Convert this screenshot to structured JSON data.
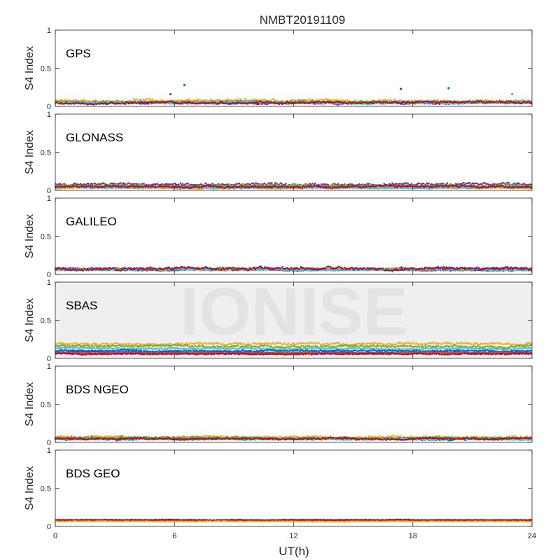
{
  "figure": {
    "title": "NMBT20191109",
    "xlabel": "UT(h)",
    "watermark": "IONISE",
    "background": "#ffffff",
    "watermark_panel_bg": "#efefef"
  },
  "chart_data": {
    "type": "scatter",
    "title": "NMBT20191109",
    "xlabel": "UT(h)",
    "ylabel": "S4 Index",
    "xlim": [
      0,
      24
    ],
    "ylim": [
      0,
      1
    ],
    "xticks": [
      0,
      6,
      12,
      18,
      24
    ],
    "yticks": [
      0,
      0.5,
      1
    ],
    "xtick_labels": [
      "0",
      "6",
      "12",
      "18",
      "24"
    ],
    "ytick_labels": [
      "0",
      "0.5",
      "1"
    ],
    "grid": false,
    "legend": "none",
    "colors": [
      "#0072bd",
      "#d95319",
      "#edb120",
      "#7e2f8e",
      "#77ac30",
      "#4dbeee",
      "#a2142f"
    ],
    "panels": [
      {
        "label": "GPS",
        "ylabel": "S4 Index",
        "series": [
          {
            "color": "#0072bd",
            "baseline": 0.05,
            "noise": 0.02
          },
          {
            "color": "#d95319",
            "baseline": 0.06,
            "noise": 0.02
          },
          {
            "color": "#edb120",
            "baseline": 0.07,
            "noise": 0.025
          },
          {
            "color": "#7e2f8e",
            "baseline": 0.05,
            "noise": 0.02
          },
          {
            "color": "#77ac30",
            "baseline": 0.06,
            "noise": 0.02
          },
          {
            "color": "#4dbeee",
            "baseline": 0.05,
            "noise": 0.02
          },
          {
            "color": "#a2142f",
            "baseline": 0.05,
            "noise": 0.02
          }
        ],
        "outliers": [
          {
            "x": 6.5,
            "y": 0.28,
            "color": "#0072bd"
          },
          {
            "x": 17.4,
            "y": 0.23,
            "color": "#a2142f"
          },
          {
            "x": 19.8,
            "y": 0.24,
            "color": "#0072bd"
          },
          {
            "x": 5.8,
            "y": 0.16,
            "color": "#0072bd"
          },
          {
            "x": 23.0,
            "y": 0.16,
            "color": "#77ac30"
          }
        ]
      },
      {
        "label": "GLONASS",
        "ylabel": "S4 Index",
        "series": [
          {
            "color": "#0072bd",
            "baseline": 0.04,
            "noise": 0.015
          },
          {
            "color": "#d95319",
            "baseline": 0.05,
            "noise": 0.015
          },
          {
            "color": "#edb120",
            "baseline": 0.03,
            "noise": 0.01
          },
          {
            "color": "#7e2f8e",
            "baseline": 0.08,
            "noise": 0.025
          },
          {
            "color": "#77ac30",
            "baseline": 0.06,
            "noise": 0.02
          },
          {
            "color": "#4dbeee",
            "baseline": 0.04,
            "noise": 0.015
          },
          {
            "color": "#a2142f",
            "baseline": 0.05,
            "noise": 0.02
          }
        ],
        "outliers": []
      },
      {
        "label": "GALILEO",
        "ylabel": "S4 Index",
        "series": [
          {
            "color": "#0072bd",
            "baseline": 0.06,
            "noise": 0.012
          },
          {
            "color": "#d95319",
            "baseline": 0.065,
            "noise": 0.015
          },
          {
            "color": "#edb120",
            "baseline": 0.07,
            "noise": 0.015
          },
          {
            "color": "#7e2f8e",
            "baseline": 0.075,
            "noise": 0.02
          },
          {
            "color": "#77ac30",
            "baseline": 0.07,
            "noise": 0.015
          },
          {
            "color": "#4dbeee",
            "baseline": 0.06,
            "noise": 0.012
          },
          {
            "color": "#a2142f",
            "baseline": 0.08,
            "noise": 0.025
          }
        ],
        "outliers": []
      },
      {
        "label": "SBAS",
        "ylabel": "S4 Index",
        "series": [
          {
            "color": "#edb120",
            "baseline": 0.19,
            "noise": 0.02
          },
          {
            "color": "#77ac30",
            "baseline": 0.16,
            "noise": 0.02
          },
          {
            "color": "#4dbeee",
            "baseline": 0.13,
            "noise": 0.015
          },
          {
            "color": "#0072bd",
            "baseline": 0.1,
            "noise": 0.012
          },
          {
            "color": "#7e2f8e",
            "baseline": 0.08,
            "noise": 0.01
          },
          {
            "color": "#d95319",
            "baseline": 0.07,
            "noise": 0.01
          },
          {
            "color": "#a2142f",
            "baseline": 0.06,
            "noise": 0.01
          }
        ],
        "outliers": []
      },
      {
        "label": "BDS NGEO",
        "ylabel": "S4 Index",
        "series": [
          {
            "color": "#0072bd",
            "baseline": 0.05,
            "noise": 0.02
          },
          {
            "color": "#d95319",
            "baseline": 0.05,
            "noise": 0.015
          },
          {
            "color": "#edb120",
            "baseline": 0.07,
            "noise": 0.02
          },
          {
            "color": "#7e2f8e",
            "baseline": 0.05,
            "noise": 0.015
          },
          {
            "color": "#77ac30",
            "baseline": 0.06,
            "noise": 0.02
          },
          {
            "color": "#4dbeee",
            "baseline": 0.04,
            "noise": 0.015
          },
          {
            "color": "#a2142f",
            "baseline": 0.05,
            "noise": 0.015
          }
        ],
        "outliers": []
      },
      {
        "label": "BDS GEO",
        "ylabel": "S4 Index",
        "series": [
          {
            "color": "#d95319",
            "baseline": 0.08,
            "noise": 0.006
          },
          {
            "color": "#a2142f",
            "baseline": 0.085,
            "noise": 0.006
          },
          {
            "color": "#edb120",
            "baseline": 0.065,
            "noise": 0.005
          }
        ],
        "outliers": []
      }
    ]
  }
}
